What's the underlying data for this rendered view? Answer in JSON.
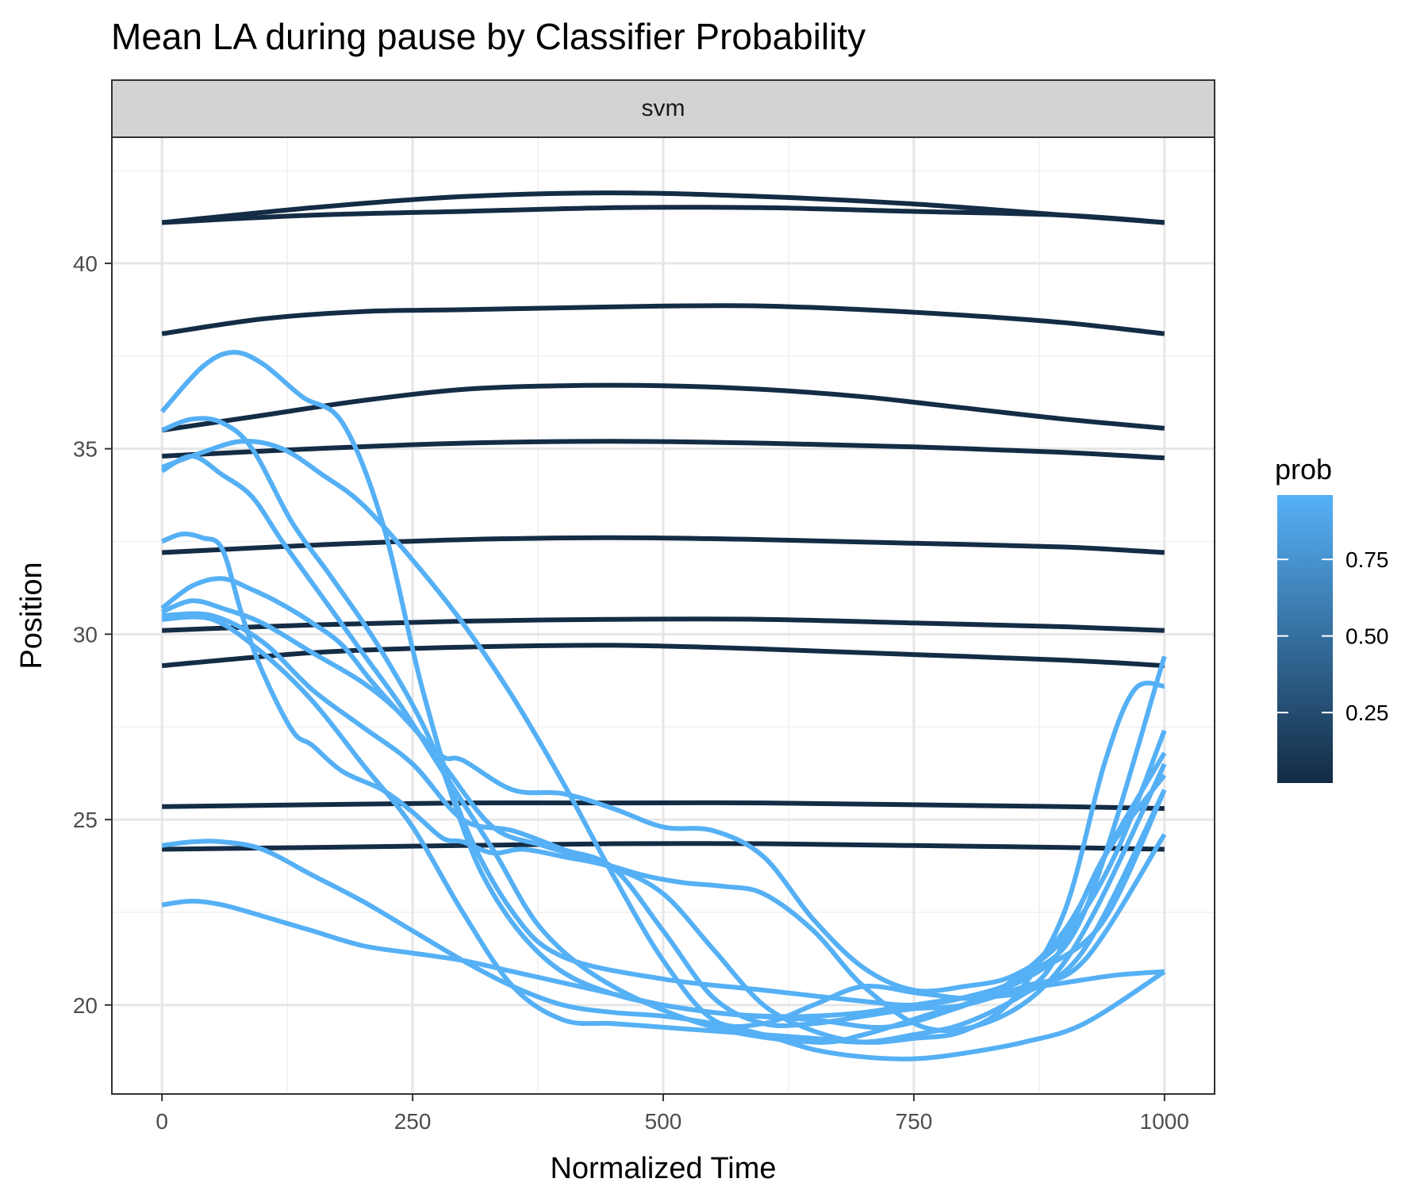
{
  "chart_data": {
    "type": "line",
    "title": "Mean LA during pause by Classifier Probability",
    "facet_label": "svm",
    "xlabel": "Normalized Time",
    "ylabel": "Position",
    "xlim": [
      -50,
      1050
    ],
    "ylim": [
      17.6,
      43.4
    ],
    "x_ticks": [
      0,
      250,
      500,
      750,
      1000
    ],
    "x_tick_labels": [
      "0",
      "250",
      "500",
      "750",
      "1000"
    ],
    "y_ticks": [
      20,
      25,
      30,
      35,
      40
    ],
    "y_tick_labels": [
      "20",
      "25",
      "30",
      "35",
      "40"
    ],
    "grid": true,
    "legend": {
      "title": "prob",
      "placement": "right",
      "type": "colorbar",
      "range": [
        0.02,
        0.96
      ],
      "breaks": [
        0.25,
        0.5,
        0.75
      ],
      "break_labels": [
        "0.25",
        "0.50",
        "0.75"
      ],
      "color_low": "#132b43",
      "color_high": "#56b1f7"
    },
    "series": [
      {
        "prob": 0.03,
        "x": [
          0,
          150,
          300,
          450,
          600,
          750,
          900,
          1000
        ],
        "y": [
          41.1,
          41.5,
          41.8,
          41.9,
          41.8,
          41.6,
          41.3,
          41.1
        ]
      },
      {
        "prob": 0.03,
        "x": [
          0,
          150,
          300,
          450,
          600,
          750,
          900,
          1000
        ],
        "y": [
          41.1,
          41.3,
          41.4,
          41.5,
          41.5,
          41.4,
          41.3,
          41.1
        ]
      },
      {
        "prob": 0.03,
        "x": [
          0,
          100,
          200,
          300,
          400,
          500,
          600,
          700,
          800,
          900,
          1000
        ],
        "y": [
          38.1,
          38.5,
          38.7,
          38.75,
          38.8,
          38.85,
          38.85,
          38.75,
          38.6,
          38.4,
          38.1
        ]
      },
      {
        "prob": 0.03,
        "x": [
          0,
          100,
          200,
          300,
          400,
          500,
          600,
          700,
          800,
          900,
          1000
        ],
        "y": [
          35.5,
          35.9,
          36.3,
          36.6,
          36.7,
          36.7,
          36.6,
          36.4,
          36.1,
          35.8,
          35.55
        ]
      },
      {
        "prob": 0.03,
        "x": [
          0,
          150,
          300,
          450,
          600,
          750,
          900,
          1000
        ],
        "y": [
          34.8,
          35.0,
          35.15,
          35.2,
          35.15,
          35.05,
          34.9,
          34.75
        ]
      },
      {
        "prob": 0.03,
        "x": [
          0,
          150,
          300,
          450,
          600,
          750,
          900,
          1000
        ],
        "y": [
          32.2,
          32.4,
          32.55,
          32.6,
          32.55,
          32.45,
          32.35,
          32.2
        ]
      },
      {
        "prob": 0.03,
        "x": [
          0,
          150,
          300,
          450,
          600,
          750,
          900,
          1000
        ],
        "y": [
          30.1,
          30.25,
          30.35,
          30.4,
          30.4,
          30.3,
          30.2,
          30.1
        ]
      },
      {
        "prob": 0.03,
        "x": [
          0,
          150,
          300,
          450,
          600,
          750,
          900,
          1000
        ],
        "y": [
          29.15,
          29.5,
          29.65,
          29.7,
          29.6,
          29.45,
          29.3,
          29.15
        ]
      },
      {
        "prob": 0.03,
        "x": [
          0,
          150,
          300,
          450,
          600,
          750,
          900,
          1000
        ],
        "y": [
          25.35,
          25.4,
          25.45,
          25.45,
          25.45,
          25.4,
          25.35,
          25.3
        ]
      },
      {
        "prob": 0.03,
        "x": [
          0,
          150,
          300,
          450,
          600,
          750,
          900,
          1000
        ],
        "y": [
          24.2,
          24.25,
          24.3,
          24.35,
          24.35,
          24.3,
          24.25,
          24.2
        ]
      },
      {
        "prob": 0.95,
        "x": [
          0,
          40,
          70,
          100,
          140,
          180,
          220,
          260,
          300,
          350,
          400,
          500,
          600,
          700,
          750,
          800,
          860,
          920,
          1000
        ],
        "y": [
          36.0,
          37.2,
          37.6,
          37.3,
          36.4,
          35.7,
          33.0,
          28.5,
          25.0,
          22.5,
          21.3,
          20.7,
          20.4,
          20.1,
          20.0,
          20.2,
          20.8,
          22.5,
          29.4
        ]
      },
      {
        "prob": 0.95,
        "x": [
          0,
          30,
          60,
          90,
          130,
          170,
          220,
          270,
          320,
          380,
          450,
          550,
          650,
          720,
          780,
          840,
          900,
          950,
          1000
        ],
        "y": [
          35.5,
          35.8,
          35.7,
          35.0,
          33.0,
          31.5,
          29.5,
          27.0,
          23.5,
          21.3,
          20.3,
          19.8,
          19.6,
          19.4,
          19.8,
          20.5,
          22.0,
          24.5,
          26.8
        ]
      },
      {
        "prob": 0.95,
        "x": [
          0,
          40,
          80,
          120,
          160,
          200,
          250,
          300,
          350,
          400,
          450,
          500,
          550,
          600,
          650,
          700,
          760,
          820,
          880,
          940,
          1000
        ],
        "y": [
          34.5,
          34.9,
          35.2,
          35.0,
          34.3,
          33.5,
          32.0,
          30.3,
          28.3,
          26.0,
          23.5,
          21.2,
          19.6,
          19.5,
          20.0,
          20.5,
          20.3,
          20.2,
          20.8,
          24.0,
          26.2
        ]
      },
      {
        "prob": 0.95,
        "x": [
          0,
          30,
          60,
          90,
          120,
          160,
          200,
          240,
          280,
          330,
          380,
          450,
          550,
          650,
          700,
          760,
          820,
          880,
          940,
          1000
        ],
        "y": [
          34.4,
          34.8,
          34.3,
          33.7,
          32.5,
          31.0,
          29.5,
          28.0,
          26.3,
          24.2,
          22.0,
          20.5,
          19.4,
          19.0,
          19.2,
          19.7,
          20.2,
          21.0,
          22.3,
          25.8
        ]
      },
      {
        "prob": 0.95,
        "x": [
          0,
          20,
          40,
          60,
          80,
          100,
          130,
          150,
          180,
          220,
          250,
          280,
          300,
          330,
          360,
          400,
          450,
          500,
          550,
          600,
          650,
          700,
          750,
          800,
          850,
          900,
          940,
          970,
          1000
        ],
        "y": [
          32.5,
          32.7,
          32.6,
          32.3,
          30.5,
          29.0,
          27.4,
          27.0,
          26.3,
          25.8,
          25.2,
          24.5,
          24.4,
          24.1,
          24.2,
          24.0,
          23.7,
          23.0,
          21.5,
          20.0,
          19.3,
          19.0,
          19.1,
          19.3,
          20.2,
          22.5,
          26.5,
          28.5,
          28.6
        ]
      },
      {
        "prob": 0.95,
        "x": [
          0,
          30,
          60,
          90,
          120,
          150,
          180,
          210,
          250,
          280,
          300,
          350,
          400,
          450,
          500,
          550,
          600,
          650,
          700,
          750,
          800,
          850,
          900,
          950,
          1000
        ],
        "y": [
          30.7,
          31.3,
          31.5,
          31.2,
          30.8,
          30.3,
          29.7,
          28.7,
          27.5,
          26.7,
          26.6,
          25.8,
          25.7,
          25.3,
          24.8,
          24.7,
          24.0,
          22.3,
          21.0,
          20.4,
          20.5,
          20.8,
          21.8,
          24.0,
          27.4
        ]
      },
      {
        "prob": 0.95,
        "x": [
          0,
          30,
          60,
          100,
          150,
          200,
          240,
          280,
          330,
          380,
          430,
          480,
          520,
          560,
          600,
          650,
          700,
          760,
          820,
          880,
          930,
          1000
        ],
        "y": [
          30.6,
          30.9,
          30.7,
          30.3,
          29.5,
          28.7,
          27.8,
          26.5,
          24.8,
          24.3,
          23.9,
          23.5,
          23.3,
          23.2,
          23.0,
          22.0,
          20.5,
          19.4,
          19.5,
          20.5,
          22.5,
          26.5
        ]
      },
      {
        "prob": 0.95,
        "x": [
          0,
          50,
          100,
          150,
          200,
          250,
          300,
          350,
          400,
          450,
          500,
          550,
          600,
          650,
          700,
          750,
          800,
          860,
          920,
          1000
        ],
        "y": [
          30.5,
          30.5,
          29.8,
          28.5,
          27.5,
          26.5,
          25.0,
          24.7,
          24.2,
          23.7,
          22.0,
          20.2,
          19.5,
          19.5,
          19.7,
          19.9,
          20.0,
          20.5,
          21.2,
          24.6
        ]
      },
      {
        "prob": 0.95,
        "x": [
          0,
          50,
          100,
          150,
          200,
          250,
          300,
          350,
          400,
          450,
          500,
          550,
          600,
          650,
          700,
          750,
          800,
          860,
          920,
          1000
        ],
        "y": [
          30.4,
          30.4,
          29.5,
          28.2,
          26.5,
          24.8,
          22.5,
          20.5,
          19.6,
          19.5,
          19.4,
          19.3,
          19.2,
          19.1,
          19.0,
          19.2,
          19.5,
          20.3,
          21.5,
          25.8
        ]
      },
      {
        "prob": 0.95,
        "x": [
          0,
          30,
          60,
          100,
          150,
          200,
          250,
          300,
          350,
          400,
          450,
          500,
          550,
          600,
          650,
          700,
          750,
          800,
          860,
          920,
          1000
        ],
        "y": [
          24.3,
          24.4,
          24.4,
          24.2,
          23.5,
          22.8,
          22.0,
          21.2,
          20.5,
          20.0,
          19.8,
          19.7,
          19.5,
          19.2,
          18.8,
          18.6,
          18.55,
          18.7,
          19.0,
          19.5,
          20.9
        ]
      },
      {
        "prob": 0.95,
        "x": [
          0,
          30,
          60,
          100,
          150,
          200,
          250,
          300,
          350,
          400,
          450,
          500,
          550,
          600,
          650,
          700,
          750,
          800,
          850,
          900,
          950,
          1000
        ],
        "y": [
          22.7,
          22.8,
          22.7,
          22.4,
          22.0,
          21.6,
          21.4,
          21.2,
          20.9,
          20.6,
          20.3,
          20.0,
          19.8,
          19.7,
          19.7,
          19.8,
          20.0,
          20.2,
          20.4,
          20.6,
          20.8,
          20.9
        ]
      }
    ]
  }
}
